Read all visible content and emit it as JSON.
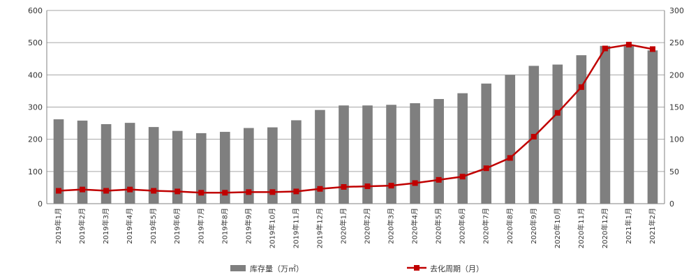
{
  "chart_data": {
    "type": "bar",
    "categories": [
      "2019年1月",
      "2019年2月",
      "2019年3月",
      "2019年4月",
      "2019年5月",
      "2019年6月",
      "2019年7月",
      "2019年8月",
      "2019年9月",
      "2019年10月",
      "2019年11月",
      "2019年12月",
      "2020年1月",
      "2020年2月",
      "2020年3月",
      "2020年4月",
      "2020年5月",
      "2020年6月",
      "2020年7月",
      "2020年8月",
      "2020年9月",
      "2020年10月",
      "2020年11月",
      "2020年12月",
      "2021年1月",
      "2021年2月"
    ],
    "series": [
      {
        "name": "库存量（万㎡）",
        "type": "bar",
        "axis": "left",
        "values": [
          262,
          258,
          247,
          251,
          238,
          226,
          219,
          223,
          235,
          237,
          259,
          291,
          305,
          305,
          307,
          312,
          325,
          343,
          373,
          400,
          428,
          432,
          461,
          490,
          490,
          476
        ]
      },
      {
        "name": "去化周期（月）",
        "type": "line",
        "axis": "right",
        "values": [
          20,
          22,
          20,
          22,
          20,
          19,
          17,
          17,
          18,
          18,
          19,
          23,
          26,
          27,
          28,
          32,
          37,
          42,
          55,
          71,
          104,
          141,
          181,
          241,
          247,
          240
        ]
      }
    ],
    "yleft": {
      "lim": [
        0,
        600
      ],
      "ticks": [
        0,
        100,
        200,
        300,
        400,
        500,
        600
      ]
    },
    "yright": {
      "lim": [
        0,
        300
      ],
      "ticks": [
        0,
        50,
        100,
        150,
        200,
        250,
        300
      ]
    },
    "grid": true,
    "legend_position": "bottom",
    "colors": {
      "bar": "#7f7f7f",
      "line": "#c00000",
      "grid": "#a6a6a6"
    }
  }
}
